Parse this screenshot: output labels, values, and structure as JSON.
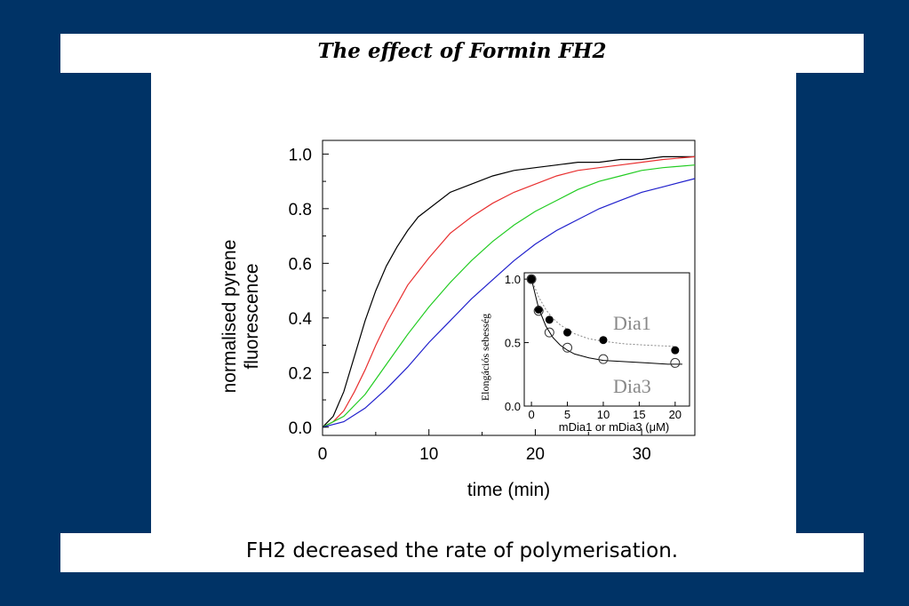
{
  "slide": {
    "title": "The effect of Formin FH2",
    "caption": "FH2 decreased the rate of polymerisation."
  },
  "colors": {
    "background": "#003366",
    "panel": "#ffffff"
  },
  "chart_data": [
    {
      "type": "line",
      "title": "",
      "xlabel": "time (min)",
      "ylabel_lines": [
        "normalised pyrene",
        "fluorescence"
      ],
      "xlim": [
        0,
        35
      ],
      "ylim": [
        -0.03,
        1.05
      ],
      "xticks": [
        0,
        10,
        20,
        30
      ],
      "xtick_labels": [
        "0",
        "10",
        "20",
        "30"
      ],
      "yticks": [
        0,
        0.2,
        0.4,
        0.6,
        0.8,
        1.0
      ],
      "ytick_labels": [
        "0.0",
        "0.2",
        "0.4",
        "0.6",
        "0.8",
        "1.0"
      ],
      "grid": false,
      "legend": "none",
      "series": [
        {
          "color": "#000000",
          "x": [
            0,
            1,
            2,
            3,
            4,
            5,
            6,
            7,
            8,
            9,
            10,
            12,
            14,
            16,
            18,
            20,
            22,
            24,
            26,
            28,
            30,
            32,
            35
          ],
          "y": [
            0.0,
            0.04,
            0.13,
            0.26,
            0.39,
            0.5,
            0.59,
            0.66,
            0.72,
            0.77,
            0.8,
            0.86,
            0.89,
            0.92,
            0.94,
            0.95,
            0.96,
            0.97,
            0.97,
            0.98,
            0.98,
            0.99,
            0.99
          ]
        },
        {
          "color": "#e83030",
          "x": [
            0,
            1,
            2,
            3,
            4,
            5,
            6,
            7,
            8,
            9,
            10,
            12,
            14,
            16,
            18,
            20,
            22,
            24,
            26,
            28,
            30,
            32,
            35
          ],
          "y": [
            0.0,
            0.02,
            0.06,
            0.13,
            0.21,
            0.3,
            0.38,
            0.45,
            0.52,
            0.57,
            0.62,
            0.71,
            0.77,
            0.82,
            0.86,
            0.89,
            0.92,
            0.94,
            0.95,
            0.96,
            0.97,
            0.98,
            0.99
          ]
        },
        {
          "color": "#22cc22",
          "x": [
            0,
            2,
            4,
            6,
            8,
            10,
            12,
            14,
            16,
            18,
            20,
            22,
            24,
            26,
            28,
            30,
            32,
            35
          ],
          "y": [
            0.0,
            0.04,
            0.12,
            0.23,
            0.34,
            0.44,
            0.53,
            0.61,
            0.68,
            0.74,
            0.79,
            0.83,
            0.87,
            0.9,
            0.92,
            0.94,
            0.95,
            0.96
          ]
        },
        {
          "color": "#2020cc",
          "x": [
            0,
            2,
            4,
            6,
            8,
            10,
            12,
            14,
            16,
            18,
            20,
            22,
            24,
            26,
            28,
            30,
            32,
            35
          ],
          "y": [
            0.0,
            0.02,
            0.07,
            0.14,
            0.22,
            0.31,
            0.39,
            0.47,
            0.54,
            0.61,
            0.67,
            0.72,
            0.76,
            0.8,
            0.83,
            0.86,
            0.88,
            0.91
          ]
        }
      ]
    },
    {
      "type": "scatter",
      "title": "",
      "xlabel": "mDia1 or mDia3 (μM)",
      "ylabel": "Elongációs sebesség",
      "xlim": [
        -1,
        22
      ],
      "ylim": [
        0,
        1.05
      ],
      "xticks": [
        0,
        5,
        10,
        15,
        20
      ],
      "xtick_labels": [
        "0",
        "5",
        "10",
        "15",
        "20"
      ],
      "yticks": [
        0,
        0.5,
        1.0
      ],
      "ytick_labels": [
        "0.0",
        "0.5",
        "1.0"
      ],
      "grid": false,
      "series": [
        {
          "name": "Dia1",
          "marker": "filled-circle",
          "fit": "dotted",
          "x": [
            0,
            1,
            2.5,
            5,
            10,
            20
          ],
          "y": [
            1.0,
            0.76,
            0.68,
            0.58,
            0.52,
            0.44
          ],
          "fit_x": [
            0,
            1,
            2,
            3,
            4,
            6,
            8,
            10,
            13,
            16,
            20
          ],
          "fit_y": [
            1.0,
            0.86,
            0.76,
            0.69,
            0.64,
            0.57,
            0.53,
            0.51,
            0.49,
            0.48,
            0.47
          ]
        },
        {
          "name": "Dia3",
          "marker": "open-circle",
          "fit": "solid",
          "x": [
            0,
            1,
            2.5,
            5,
            10,
            20
          ],
          "y": [
            1.0,
            0.75,
            0.58,
            0.46,
            0.37,
            0.34
          ],
          "fit_x": [
            0,
            1,
            2,
            3,
            4,
            5,
            6,
            8,
            10,
            13,
            16,
            19,
            21
          ],
          "fit_y": [
            1.0,
            0.77,
            0.63,
            0.54,
            0.48,
            0.44,
            0.41,
            0.38,
            0.36,
            0.35,
            0.34,
            0.33,
            0.33
          ]
        }
      ]
    }
  ]
}
